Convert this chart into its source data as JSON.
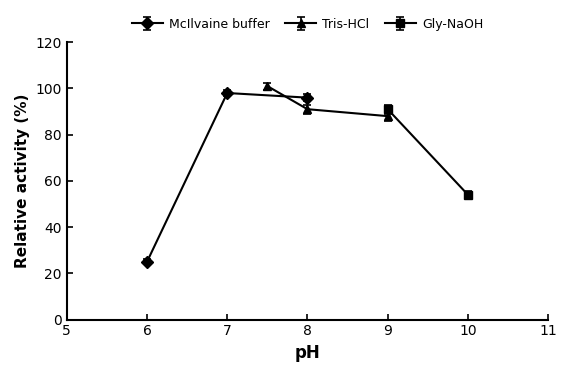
{
  "series": [
    {
      "label": "McIlvaine buffer",
      "x": [
        6,
        7,
        8
      ],
      "y": [
        25,
        98,
        96
      ],
      "yerr": [
        1.0,
        1.5,
        1.5
      ],
      "marker": "D",
      "markersize": 6,
      "color": "#000000"
    },
    {
      "label": "Tris-HCl",
      "x": [
        7.5,
        8,
        9
      ],
      "y": [
        101,
        91,
        88
      ],
      "yerr": [
        1.5,
        2.0,
        2.0
      ],
      "marker": "^",
      "markersize": 6,
      "color": "#000000"
    },
    {
      "label": "Gly-NaOH",
      "x": [
        9,
        10
      ],
      "y": [
        91,
        54
      ],
      "yerr": [
        2.0,
        1.5
      ],
      "marker": "s",
      "markersize": 6,
      "color": "#000000"
    }
  ],
  "xlabel": "pH",
  "ylabel": "Relative activity (%)",
  "xlim": [
    5,
    11
  ],
  "ylim": [
    0,
    120
  ],
  "xticks": [
    5,
    6,
    7,
    8,
    9,
    10,
    11
  ],
  "yticks": [
    0,
    20,
    40,
    60,
    80,
    100,
    120
  ],
  "legend_ncol": 3,
  "line_width": 1.5,
  "figsize": [
    5.72,
    3.77
  ],
  "dpi": 100,
  "xlabel_fontsize": 12,
  "ylabel_fontsize": 11,
  "tick_labelsize": 10,
  "legend_fontsize": 9
}
